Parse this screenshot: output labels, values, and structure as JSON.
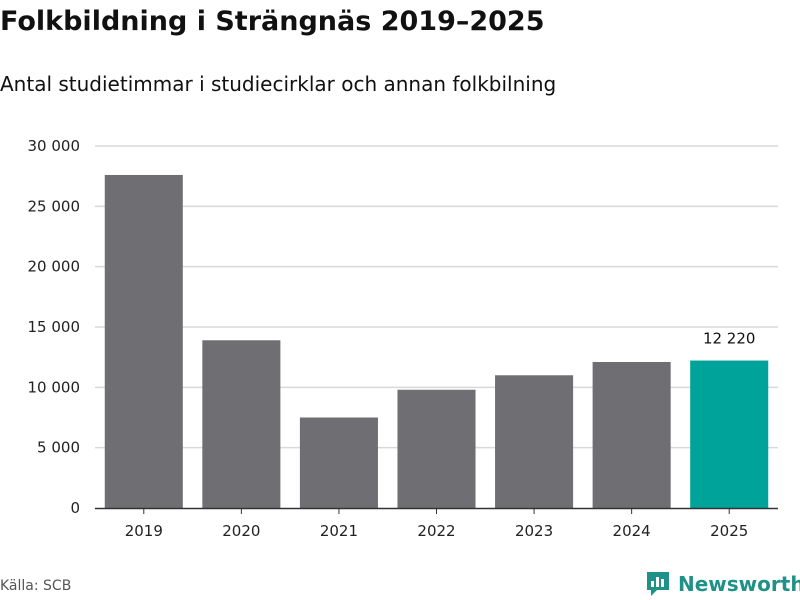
{
  "header": {
    "title": "Folkbildning i Strängnäs 2019–2025",
    "subtitle": "Antal studietimmar i studiecirklar och annan folkbilning"
  },
  "footer": {
    "source": "Källa: SCB",
    "brand": "Newsworthy",
    "brand_icon": "bar-chart-speech-icon"
  },
  "colors": {
    "bar": "#6f6e73",
    "highlight": "#00a39a",
    "grid": "#d9d9d9",
    "axis": "#333333",
    "brand": "#1f9188"
  },
  "chart_data": {
    "type": "bar",
    "title": "Folkbildning i Strängnäs 2019–2025",
    "subtitle": "Antal studietimmar i studiecirklar och annan folkbilning",
    "xlabel": "",
    "ylabel": "",
    "categories": [
      "2019",
      "2020",
      "2021",
      "2022",
      "2023",
      "2024",
      "2025"
    ],
    "values": [
      27600,
      13900,
      7500,
      9800,
      11000,
      12100,
      12220
    ],
    "highlight_index": 6,
    "data_labels": [
      {
        "index": 6,
        "text": "12 220"
      }
    ],
    "ylim": [
      0,
      30000
    ],
    "yticks": [
      0,
      5000,
      10000,
      15000,
      20000,
      25000,
      30000
    ],
    "ytick_labels": [
      "0",
      "5 000",
      "10 000",
      "15 000",
      "20 000",
      "25 000",
      "30 000"
    ],
    "grid": true,
    "legend": "none"
  }
}
